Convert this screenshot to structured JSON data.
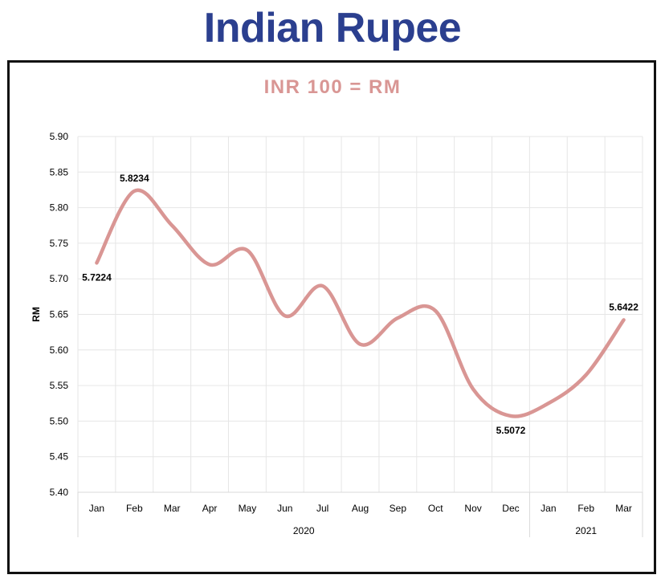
{
  "page": {
    "heading": "Indian Rupee"
  },
  "colors": {
    "heading": "#2b3f8f",
    "line": "#d99694",
    "title": "#d99694",
    "grid": "#e6e6e6",
    "frame": "#111111",
    "text": "#000000"
  },
  "chart_data": {
    "type": "line",
    "title": "INR 100 = RM",
    "xlabel": "",
    "ylabel": "RM",
    "categories": [
      "Jan",
      "Feb",
      "Mar",
      "Apr",
      "May",
      "Jun",
      "Jul",
      "Aug",
      "Sep",
      "Oct",
      "Nov",
      "Dec",
      "Jan",
      "Feb",
      "Mar"
    ],
    "category_groups": [
      {
        "label": "2020",
        "count": 12
      },
      {
        "label": "2021",
        "count": 3
      }
    ],
    "values": [
      5.7224,
      5.8234,
      5.775,
      5.72,
      5.74,
      5.648,
      5.69,
      5.608,
      5.645,
      5.655,
      5.545,
      5.5072,
      5.525,
      5.565,
      5.6422
    ],
    "ylim": [
      5.4,
      5.9
    ],
    "yticks": [
      "5.40",
      "5.45",
      "5.50",
      "5.55",
      "5.60",
      "5.65",
      "5.70",
      "5.75",
      "5.80",
      "5.85",
      "5.90"
    ],
    "data_labels": [
      {
        "index": 0,
        "text": "5.7224"
      },
      {
        "index": 1,
        "text": "5.8234"
      },
      {
        "index": 11,
        "text": "5.5072"
      },
      {
        "index": 14,
        "text": "5.6422"
      }
    ],
    "grid": true,
    "legend": "none",
    "smooth": true
  }
}
